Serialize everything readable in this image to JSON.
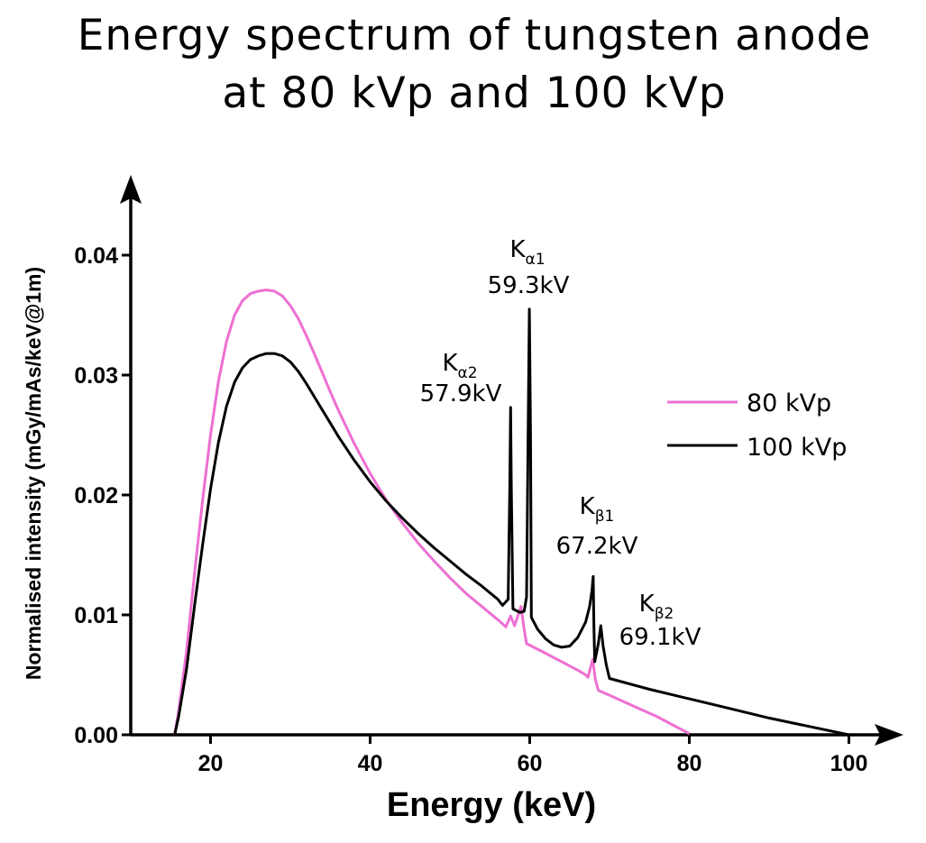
{
  "chart_data": {
    "type": "line",
    "title_line1": "Energy spectrum of tungsten anode",
    "title_line2": "at 80  kVp and 100 kVp",
    "xlabel": "Energy (keV)",
    "ylabel": "Normalised intensity (mGy/mAs/keV@1m)",
    "xlim": [
      10,
      105
    ],
    "ylim": [
      0,
      0.045
    ],
    "x_ticks": [
      {
        "value": 20,
        "label": "20"
      },
      {
        "value": 40,
        "label": "40"
      },
      {
        "value": 60,
        "label": "60"
      },
      {
        "value": 80,
        "label": "80"
      },
      {
        "value": 100,
        "label": "100"
      }
    ],
    "y_ticks": [
      {
        "value": 0.0,
        "label": "0.00"
      },
      {
        "value": 0.01,
        "label": "0.01"
      },
      {
        "value": 0.02,
        "label": "0.02"
      },
      {
        "value": 0.03,
        "label": "0.03"
      },
      {
        "value": 0.04,
        "label": "0.04"
      }
    ],
    "series": [
      {
        "name": "80 kVp",
        "color": "#ee6fd2",
        "points": [
          [
            15.5,
            0
          ],
          [
            16,
            0.002
          ],
          [
            17,
            0.007
          ],
          [
            18,
            0.0135
          ],
          [
            19,
            0.0195
          ],
          [
            20,
            0.025
          ],
          [
            21,
            0.0295
          ],
          [
            22,
            0.0328
          ],
          [
            23,
            0.035
          ],
          [
            24,
            0.0362
          ],
          [
            25,
            0.0368
          ],
          [
            26,
            0.037
          ],
          [
            27,
            0.0371
          ],
          [
            28,
            0.037
          ],
          [
            29,
            0.0366
          ],
          [
            30,
            0.0358
          ],
          [
            31,
            0.0347
          ],
          [
            32,
            0.0333
          ],
          [
            33,
            0.0318
          ],
          [
            34,
            0.0302
          ],
          [
            35,
            0.0286
          ],
          [
            36,
            0.0271
          ],
          [
            38,
            0.0243
          ],
          [
            40,
            0.0218
          ],
          [
            42,
            0.0196
          ],
          [
            44,
            0.0177
          ],
          [
            46,
            0.016
          ],
          [
            48,
            0.0145
          ],
          [
            50,
            0.0131
          ],
          [
            52,
            0.0118
          ],
          [
            54,
            0.0107
          ],
          [
            56,
            0.0096
          ],
          [
            57,
            0.009
          ],
          [
            57.6,
            0.0099
          ],
          [
            58.1,
            0.0091
          ],
          [
            58.9,
            0.0107
          ],
          [
            59.3,
            0.0088
          ],
          [
            59.6,
            0.0076
          ],
          [
            62,
            0.0068
          ],
          [
            64,
            0.0061
          ],
          [
            66,
            0.0054
          ],
          [
            67,
            0.005
          ],
          [
            67.3,
            0.0048
          ],
          [
            67.9,
            0.0063
          ],
          [
            68.2,
            0.0047
          ],
          [
            68.6,
            0.0037
          ],
          [
            70,
            0.0033
          ],
          [
            72,
            0.0027
          ],
          [
            74,
            0.0021
          ],
          [
            76,
            0.0015
          ],
          [
            78,
            0.0008
          ],
          [
            80,
            0.0001
          ]
        ]
      },
      {
        "name": "100 kVp",
        "color": "#000000",
        "points": [
          [
            15.5,
            0
          ],
          [
            16,
            0.0015
          ],
          [
            17,
            0.0055
          ],
          [
            18,
            0.0108
          ],
          [
            19,
            0.0158
          ],
          [
            20,
            0.0205
          ],
          [
            21,
            0.0244
          ],
          [
            22,
            0.0274
          ],
          [
            23,
            0.0294
          ],
          [
            24,
            0.0306
          ],
          [
            25,
            0.0313
          ],
          [
            26,
            0.0316
          ],
          [
            27,
            0.0318
          ],
          [
            28,
            0.0318
          ],
          [
            29,
            0.0316
          ],
          [
            30,
            0.0311
          ],
          [
            31,
            0.0303
          ],
          [
            32,
            0.0293
          ],
          [
            33,
            0.0282
          ],
          [
            34,
            0.0271
          ],
          [
            35,
            0.026
          ],
          [
            36,
            0.0249
          ],
          [
            38,
            0.0229
          ],
          [
            40,
            0.0211
          ],
          [
            42,
            0.0195
          ],
          [
            44,
            0.0181
          ],
          [
            46,
            0.0168
          ],
          [
            48,
            0.0156
          ],
          [
            50,
            0.0145
          ],
          [
            52,
            0.0134
          ],
          [
            54,
            0.0124
          ],
          [
            56,
            0.0113
          ],
          [
            56.6,
            0.0108
          ],
          [
            57.3,
            0.0113
          ],
          [
            57.5,
            0.0207
          ],
          [
            57.6,
            0.0273
          ],
          [
            57.7,
            0.0205
          ],
          [
            57.9,
            0.0105
          ],
          [
            58.8,
            0.0102
          ],
          [
            59.3,
            0.0103
          ],
          [
            59.6,
            0.0115
          ],
          [
            59.8,
            0.025
          ],
          [
            59.95,
            0.0355
          ],
          [
            60.1,
            0.025
          ],
          [
            60.2,
            0.0098
          ],
          [
            61,
            0.0088
          ],
          [
            62,
            0.008
          ],
          [
            63,
            0.0075
          ],
          [
            64,
            0.0073
          ],
          [
            65,
            0.0074
          ],
          [
            66,
            0.0081
          ],
          [
            67,
            0.0094
          ],
          [
            67.5,
            0.0107
          ],
          [
            67.8,
            0.012
          ],
          [
            67.95,
            0.0132
          ],
          [
            68.05,
            0.009
          ],
          [
            68.15,
            0.0061
          ],
          [
            68.6,
            0.0076
          ],
          [
            68.9,
            0.0091
          ],
          [
            69.2,
            0.0074
          ],
          [
            69.6,
            0.0058
          ],
          [
            70,
            0.0047
          ],
          [
            75,
            0.0038
          ],
          [
            80,
            0.003
          ],
          [
            85,
            0.0022
          ],
          [
            90,
            0.0014
          ],
          [
            95,
            0.0007
          ],
          [
            100,
            0
          ]
        ]
      }
    ],
    "annotations": [
      {
        "symbol": "K",
        "sub": "α2",
        "value": "57.9kV"
      },
      {
        "symbol": "K",
        "sub": "α1",
        "value": "59.3kV"
      },
      {
        "symbol": "K",
        "sub": "β1",
        "value": "67.2kV"
      },
      {
        "symbol": "K",
        "sub": "β2",
        "value": "69.1kV"
      }
    ],
    "legend_position": "right"
  }
}
